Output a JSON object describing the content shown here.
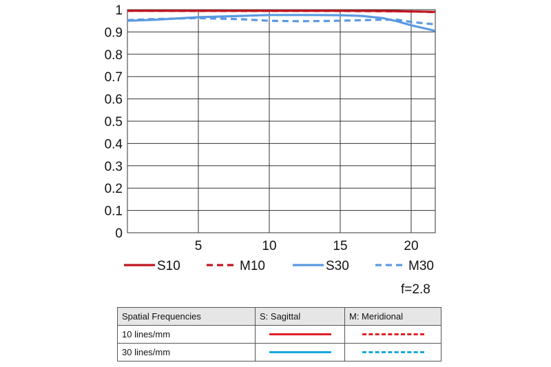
{
  "chart_data": {
    "type": "line",
    "xlim": [
      0,
      21.7
    ],
    "ylim": [
      0,
      1
    ],
    "xticks": [
      5,
      10,
      15,
      20
    ],
    "yticks": [
      0,
      0.1,
      0.2,
      0.3,
      0.4,
      0.5,
      0.6,
      0.7,
      0.8,
      0.9,
      1
    ],
    "ytick_labels": [
      "0",
      "0.1",
      "0.2",
      "0.3",
      "0.4",
      "0.5",
      "0.6",
      "0.7",
      "0.8",
      "0.9",
      "1"
    ],
    "xtick_labels": [
      "5",
      "10",
      "15",
      "20"
    ],
    "grid": true,
    "series": [
      {
        "name": "S10",
        "color": "#c0161f",
        "dash": false,
        "x": [
          0,
          5,
          10,
          15,
          18,
          20,
          21.7
        ],
        "y": [
          0.995,
          0.995,
          0.995,
          0.995,
          0.994,
          0.992,
          0.99
        ]
      },
      {
        "name": "M10",
        "color": "#c0161f",
        "dash": true,
        "x": [
          0,
          5,
          10,
          15,
          18,
          20,
          21.7
        ],
        "y": [
          0.995,
          0.994,
          0.994,
          0.994,
          0.993,
          0.992,
          0.989
        ]
      },
      {
        "name": "S30",
        "color": "#5a9ae0",
        "dash": false,
        "x": [
          0,
          2,
          5,
          8,
          10,
          13,
          15,
          16.5,
          18,
          19,
          20,
          21,
          21.7
        ],
        "y": [
          0.95,
          0.955,
          0.966,
          0.972,
          0.976,
          0.976,
          0.975,
          0.972,
          0.962,
          0.948,
          0.93,
          0.915,
          0.905
        ]
      },
      {
        "name": "M30",
        "color": "#5a9ae0",
        "dash": true,
        "x": [
          0,
          2,
          5,
          8,
          10,
          12,
          14,
          16,
          18,
          19,
          20,
          21,
          21.7
        ],
        "y": [
          0.953,
          0.958,
          0.962,
          0.957,
          0.95,
          0.948,
          0.949,
          0.952,
          0.955,
          0.955,
          0.945,
          0.938,
          0.934
        ]
      }
    ]
  },
  "aperture": "f=2.8",
  "table": {
    "headers": [
      "Spatial Frequencies",
      "S: Sagittal",
      "M: Meridional"
    ],
    "rows": [
      {
        "label": "10 lines/mm",
        "sagittal_color": "#e01e26",
        "meridional_color": "#e01e26"
      },
      {
        "label": "30 lines/mm",
        "sagittal_color": "#17a7dc",
        "meridional_color": "#17a7dc"
      }
    ]
  }
}
